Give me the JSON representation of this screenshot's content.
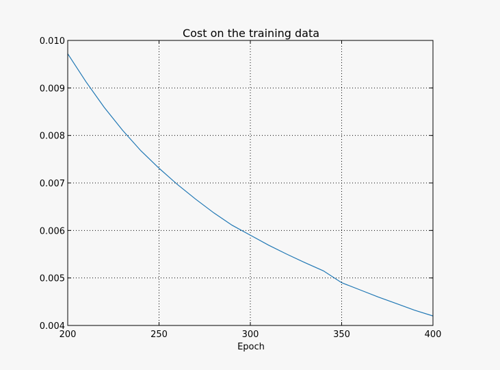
{
  "chart_data": {
    "type": "line",
    "title": "Cost on the training data",
    "xlabel": "Epoch",
    "ylabel": "",
    "xlim": [
      200,
      400
    ],
    "ylim": [
      0.004,
      0.01
    ],
    "x_ticks": [
      "200",
      "250",
      "300",
      "350",
      "400"
    ],
    "y_ticks": [
      "0.004",
      "0.005",
      "0.006",
      "0.007",
      "0.008",
      "0.009",
      "0.010"
    ],
    "grid": true,
    "series": [
      {
        "color": "#1f77b4",
        "x": [
          200,
          210,
          220,
          230,
          240,
          250,
          260,
          270,
          280,
          290,
          300,
          310,
          320,
          330,
          340,
          350,
          360,
          370,
          380,
          390,
          400
        ],
        "y": [
          0.00972,
          0.00913,
          0.00859,
          0.00811,
          0.00768,
          0.00731,
          0.00697,
          0.00666,
          0.00637,
          0.00611,
          0.0059,
          0.00569,
          0.0055,
          0.00532,
          0.00515,
          0.0049,
          0.00475,
          0.0046,
          0.00446,
          0.00432,
          0.0042
        ]
      }
    ]
  }
}
